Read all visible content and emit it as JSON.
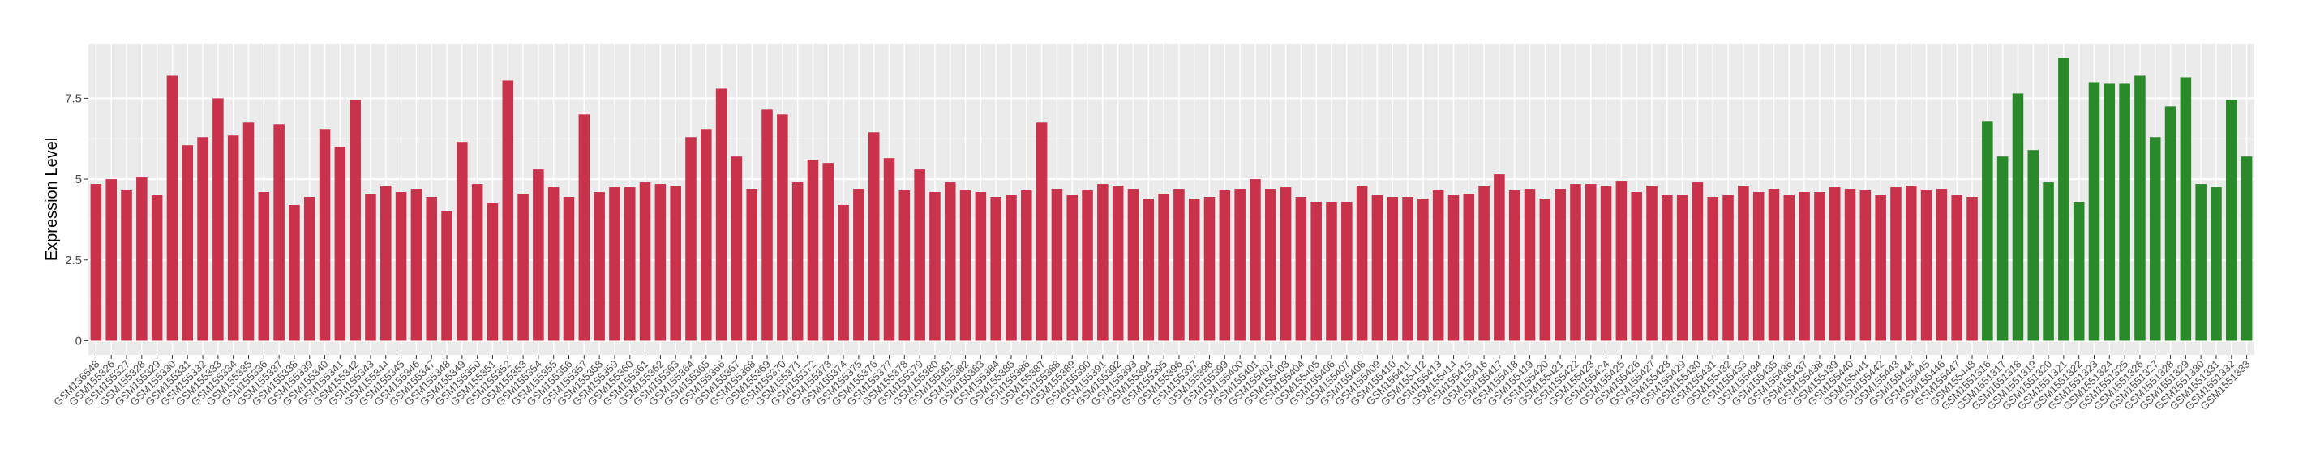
{
  "chart_data": {
    "type": "bar",
    "y_label": "Expression Level",
    "categories": [
      "GSM136548",
      "GSM155326",
      "GSM155327",
      "GSM155328",
      "GSM155329",
      "GSM155330",
      "GSM155331",
      "GSM155332",
      "GSM155333",
      "GSM155334",
      "GSM155335",
      "GSM155336",
      "GSM155337",
      "GSM155338",
      "GSM155339",
      "GSM155340",
      "GSM155341",
      "GSM155342",
      "GSM155343",
      "GSM155344",
      "GSM155345",
      "GSM155346",
      "GSM155347",
      "GSM155348",
      "GSM155349",
      "GSM155350",
      "GSM155351",
      "GSM155352",
      "GSM155353",
      "GSM155354",
      "GSM155355",
      "GSM155356",
      "GSM155357",
      "GSM155358",
      "GSM155359",
      "GSM155360",
      "GSM155361",
      "GSM155362",
      "GSM155363",
      "GSM155364",
      "GSM155365",
      "GSM155366",
      "GSM155367",
      "GSM155368",
      "GSM155369",
      "GSM155370",
      "GSM155371",
      "GSM155372",
      "GSM155373",
      "GSM155374",
      "GSM155375",
      "GSM155376",
      "GSM155377",
      "GSM155378",
      "GSM155379",
      "GSM155380",
      "GSM155381",
      "GSM155382",
      "GSM155383",
      "GSM155384",
      "GSM155385",
      "GSM155386",
      "GSM155387",
      "GSM155388",
      "GSM155389",
      "GSM155390",
      "GSM155391",
      "GSM155392",
      "GSM155393",
      "GSM155394",
      "GSM155395",
      "GSM155396",
      "GSM155397",
      "GSM155398",
      "GSM155399",
      "GSM155400",
      "GSM155401",
      "GSM155402",
      "GSM155403",
      "GSM155404",
      "GSM155405",
      "GSM155406",
      "GSM155407",
      "GSM155408",
      "GSM155409",
      "GSM155410",
      "GSM155411",
      "GSM155412",
      "GSM155413",
      "GSM155414",
      "GSM155415",
      "GSM155416",
      "GSM155417",
      "GSM155418",
      "GSM155419",
      "GSM155420",
      "GSM155421",
      "GSM155422",
      "GSM155423",
      "GSM155424",
      "GSM155425",
      "GSM155426",
      "GSM155427",
      "GSM155428",
      "GSM155429",
      "GSM155430",
      "GSM155431",
      "GSM155432",
      "GSM155433",
      "GSM155434",
      "GSM155435",
      "GSM155436",
      "GSM155437",
      "GSM155438",
      "GSM155439",
      "GSM155440",
      "GSM155441",
      "GSM155442",
      "GSM155443",
      "GSM155444",
      "GSM155445",
      "GSM155446",
      "GSM155447",
      "GSM155448",
      "GSM1551316",
      "GSM1551317",
      "GSM1551318",
      "GSM1551319",
      "GSM1551320",
      "GSM1551321",
      "GSM1551322",
      "GSM1551323",
      "GSM1551324",
      "GSM1551325",
      "GSM1551326",
      "GSM1551327",
      "GSM1551328",
      "GSM1551329",
      "GSM1551330",
      "GSM1551331",
      "GSM1551332",
      "GSM1551333"
    ],
    "series": [
      {
        "color": "#c8334b",
        "values": [
          4.85,
          5.0,
          4.65,
          5.05,
          4.5,
          8.2,
          6.05,
          6.3,
          7.5,
          6.35,
          6.75,
          4.6,
          6.7,
          4.2,
          4.45,
          6.55,
          6.0,
          7.45,
          4.55,
          4.8,
          4.6,
          4.7,
          4.45,
          4.0,
          6.15,
          4.85,
          4.25,
          8.05,
          4.55,
          5.3,
          4.75,
          4.45,
          7.0,
          4.6,
          4.75,
          4.75,
          4.9,
          4.85,
          4.8,
          6.3,
          6.55,
          7.8,
          5.7,
          4.7,
          7.15,
          7.0,
          4.9,
          5.6,
          5.5,
          4.2,
          4.7,
          6.45,
          5.65,
          4.65,
          5.3,
          4.6,
          4.9,
          4.65,
          4.6,
          4.45,
          4.5,
          4.65,
          6.75,
          4.7,
          4.5,
          4.65,
          4.85,
          4.8,
          4.7,
          4.4,
          4.55,
          4.7,
          4.4,
          4.45,
          4.65,
          4.7,
          5.0,
          4.7,
          4.75,
          4.45,
          4.3,
          4.3,
          4.3,
          4.8,
          4.5,
          4.45,
          4.45,
          4.4,
          4.65,
          4.5,
          4.55,
          4.8,
          5.15,
          4.65,
          4.7,
          4.4,
          4.7,
          4.85,
          4.85,
          4.8,
          4.95,
          4.6,
          4.8,
          4.5,
          4.5,
          4.9,
          4.45,
          4.5,
          4.8,
          4.6,
          4.7,
          4.5,
          4.6,
          4.6,
          4.75,
          4.7,
          4.65,
          4.5,
          4.75,
          4.8,
          4.65,
          4.7,
          4.5,
          4.45,
          null,
          null,
          null,
          null,
          null,
          null,
          null,
          null,
          null,
          null,
          null,
          null,
          null,
          null,
          null,
          null,
          null,
          null
        ]
      },
      {
        "color": "#2a8a2a",
        "values": [
          null,
          null,
          null,
          null,
          null,
          null,
          null,
          null,
          null,
          null,
          null,
          null,
          null,
          null,
          null,
          null,
          null,
          null,
          null,
          null,
          null,
          null,
          null,
          null,
          null,
          null,
          null,
          null,
          null,
          null,
          null,
          null,
          null,
          null,
          null,
          null,
          null,
          null,
          null,
          null,
          null,
          null,
          null,
          null,
          null,
          null,
          null,
          null,
          null,
          null,
          null,
          null,
          null,
          null,
          null,
          null,
          null,
          null,
          null,
          null,
          null,
          null,
          null,
          null,
          null,
          null,
          null,
          null,
          null,
          null,
          null,
          null,
          null,
          null,
          null,
          null,
          null,
          null,
          null,
          null,
          null,
          null,
          null,
          null,
          null,
          null,
          null,
          null,
          null,
          null,
          null,
          null,
          null,
          null,
          null,
          null,
          null,
          null,
          null,
          null,
          null,
          null,
          null,
          null,
          null,
          null,
          null,
          null,
          null,
          null,
          null,
          null,
          null,
          null,
          null,
          null,
          null,
          null,
          null,
          null,
          null,
          null,
          null,
          null,
          6.8,
          5.7,
          7.65,
          5.9,
          4.9,
          8.75,
          4.3,
          8.0,
          7.95,
          7.95,
          8.2,
          6.3,
          7.25,
          8.15,
          4.85,
          4.75,
          7.45,
          5.7
        ]
      }
    ],
    "ylim": [
      -0.44,
      9.19
    ],
    "yticks": [
      0.0,
      2.5,
      5.0,
      7.5
    ],
    "grid": true
  }
}
